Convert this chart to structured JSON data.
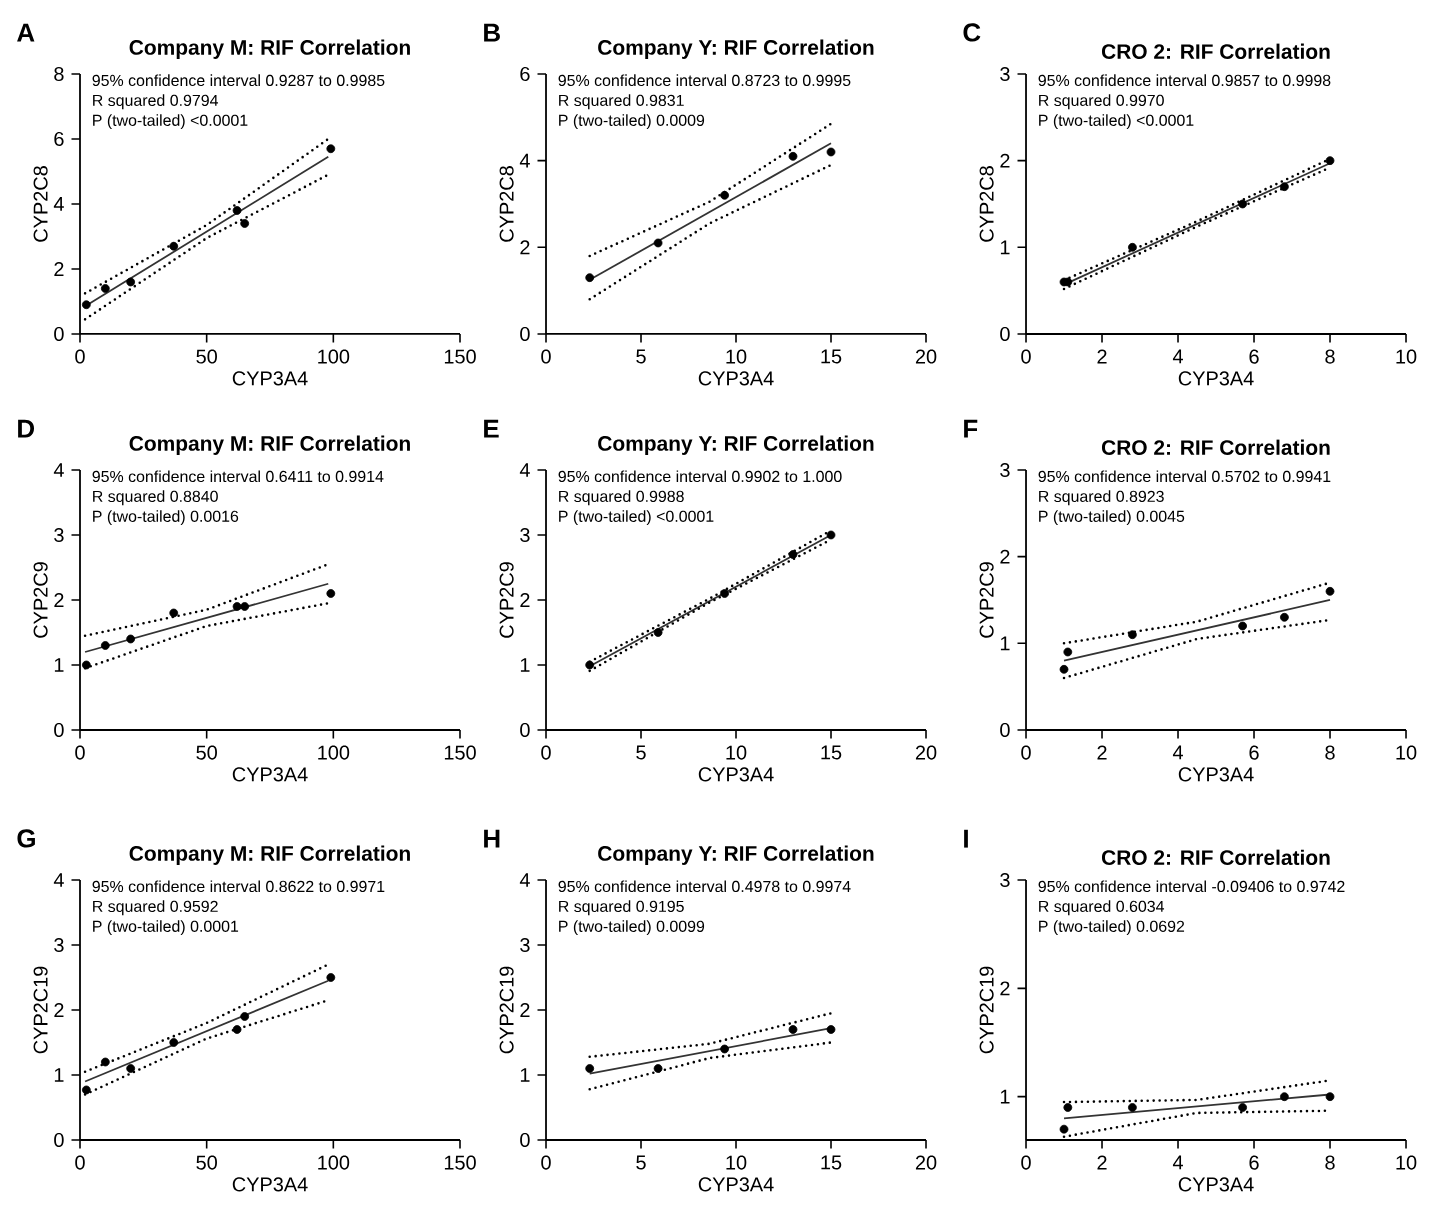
{
  "chart_data": [
    {
      "type": "scatter",
      "title": "Company M: RIF Correlation",
      "xlabel": "CYP3A4",
      "ylabel": "CYP2C8",
      "xlim": [
        0,
        150
      ],
      "xticks": [
        0,
        50,
        100,
        150
      ],
      "ylim": [
        0,
        8
      ],
      "yticks": [
        0,
        2,
        4,
        6,
        8
      ],
      "annotations": [
        "A",
        "95% confidence interval 0.9287 to 0.9985",
        "R squared 0.9794",
        "P (two-tailed) <0.0001"
      ],
      "series": [
        {
          "type": "scatter",
          "marker": "circle",
          "color": "#000000",
          "x": [
            2.5,
            10,
            20,
            37,
            62,
            65,
            99
          ],
          "values": [
            0.9,
            1.4,
            1.6,
            2.7,
            3.8,
            3.4,
            5.7
          ]
        },
        {
          "type": "line",
          "marker": "none",
          "line_style": "solid",
          "color": "#333333",
          "x": [
            2,
            98
          ],
          "values": [
            0.85,
            5.45
          ]
        },
        {
          "type": "line",
          "marker": "none",
          "line_style": "dotted",
          "color": "#000000",
          "x": [
            2,
            50,
            98
          ],
          "values": [
            1.25,
            3.35,
            6.0
          ]
        },
        {
          "type": "line",
          "marker": "none",
          "line_style": "dotted",
          "color": "#000000",
          "x": [
            2,
            50,
            98
          ],
          "values": [
            0.45,
            2.95,
            4.9
          ]
        }
      ]
    },
    {
      "type": "scatter",
      "title": "Company Y: RIF Correlation",
      "xlabel": "CYP3A4",
      "ylabel": "CYP2C8",
      "xlim": [
        0,
        20
      ],
      "xticks": [
        0,
        5,
        10,
        15,
        20
      ],
      "ylim": [
        0,
        6
      ],
      "yticks": [
        0,
        2,
        4,
        6
      ],
      "annotations": [
        "B",
        "95% confidence interval 0.8723 to 0.9995",
        "R squared 0.9831",
        "P (two-tailed) 0.0009"
      ],
      "series": [
        {
          "type": "scatter",
          "marker": "circle",
          "color": "#000000",
          "x": [
            2.3,
            5.9,
            9.4,
            13,
            15
          ],
          "values": [
            1.3,
            2.1,
            3.2,
            4.1,
            4.2
          ]
        },
        {
          "type": "line",
          "marker": "none",
          "line_style": "solid",
          "color": "#333333",
          "x": [
            2.3,
            15
          ],
          "values": [
            1.25,
            4.4
          ]
        },
        {
          "type": "line",
          "marker": "none",
          "line_style": "dotted",
          "color": "#000000",
          "x": [
            2.3,
            8.6,
            15
          ],
          "values": [
            1.8,
            3.05,
            4.85
          ]
        },
        {
          "type": "line",
          "marker": "none",
          "line_style": "dotted",
          "color": "#000000",
          "x": [
            2.3,
            8.6,
            15
          ],
          "values": [
            0.8,
            2.55,
            3.9
          ]
        }
      ]
    },
    {
      "type": "scatter",
      "title": "CRO 2: RIF Correlation",
      "xlabel": "CYP3A4",
      "ylabel": "CYP2C8",
      "xlim": [
        0,
        10
      ],
      "xticks": [
        0,
        2,
        4,
        6,
        8,
        10
      ],
      "ylim": [
        0,
        3
      ],
      "yticks": [
        0,
        1,
        2,
        3
      ],
      "annotations": [
        "C",
        "95% confidence interval 0.9857 to 0.9998",
        "R squared 0.9970",
        "P (two-tailed) <0.0001"
      ],
      "series": [
        {
          "type": "scatter",
          "marker": "circle",
          "color": "#000000",
          "x": [
            1,
            1.1,
            2.8,
            5.7,
            6.8,
            8
          ],
          "values": [
            0.6,
            0.6,
            1.0,
            1.5,
            1.7,
            2.0
          ]
        },
        {
          "type": "line",
          "marker": "none",
          "line_style": "solid",
          "color": "#333333",
          "x": [
            1,
            8
          ],
          "values": [
            0.57,
            1.97
          ]
        },
        {
          "type": "line",
          "marker": "none",
          "line_style": "dotted",
          "color": "#000000",
          "x": [
            1,
            4.5,
            8
          ],
          "values": [
            0.62,
            1.3,
            2.02
          ]
        },
        {
          "type": "line",
          "marker": "none",
          "line_style": "dotted",
          "color": "#000000",
          "x": [
            1,
            4.5,
            8
          ],
          "values": [
            0.52,
            1.24,
            1.92
          ]
        }
      ]
    },
    {
      "type": "scatter",
      "title": "Company M: RIF Correlation",
      "xlabel": "CYP3A4",
      "ylabel": "CYP2C9",
      "xlim": [
        0,
        150
      ],
      "xticks": [
        0,
        50,
        100,
        150
      ],
      "ylim": [
        0,
        4
      ],
      "yticks": [
        0,
        1,
        2,
        3,
        4
      ],
      "annotations": [
        "D",
        "95% confidence interval 0.6411 to 0.9914",
        "R squared 0.8840",
        "P (two-tailed) 0.0016"
      ],
      "series": [
        {
          "type": "scatter",
          "marker": "circle",
          "color": "#000000",
          "x": [
            2.5,
            10,
            20,
            37,
            62,
            65,
            99
          ],
          "values": [
            1.0,
            1.3,
            1.4,
            1.8,
            1.9,
            1.9,
            2.1
          ]
        },
        {
          "type": "line",
          "marker": "none",
          "line_style": "solid",
          "color": "#333333",
          "x": [
            2,
            98
          ],
          "values": [
            1.2,
            2.25
          ]
        },
        {
          "type": "line",
          "marker": "none",
          "line_style": "dotted",
          "color": "#000000",
          "x": [
            2,
            50,
            98
          ],
          "values": [
            1.45,
            1.85,
            2.55
          ]
        },
        {
          "type": "line",
          "marker": "none",
          "line_style": "dotted",
          "color": "#000000",
          "x": [
            2,
            50,
            98
          ],
          "values": [
            0.95,
            1.6,
            1.95
          ]
        }
      ]
    },
    {
      "type": "scatter",
      "title": "Company Y: RIF Correlation",
      "xlabel": "CYP3A4",
      "ylabel": "CYP2C9",
      "xlim": [
        0,
        20
      ],
      "xticks": [
        0,
        5,
        10,
        15,
        20
      ],
      "ylim": [
        0,
        4
      ],
      "yticks": [
        0,
        1,
        2,
        3,
        4
      ],
      "annotations": [
        "E",
        "95% confidence interval 0.9902 to 1.000",
        "R squared 0.9988",
        "P (two-tailed) <0.0001"
      ],
      "series": [
        {
          "type": "scatter",
          "marker": "circle",
          "color": "#000000",
          "x": [
            2.3,
            5.9,
            9.4,
            13,
            15
          ],
          "values": [
            1.0,
            1.5,
            2.1,
            2.7,
            3.0
          ]
        },
        {
          "type": "line",
          "marker": "none",
          "line_style": "solid",
          "color": "#333333",
          "x": [
            2.3,
            15
          ],
          "values": [
            0.98,
            3.0
          ]
        },
        {
          "type": "line",
          "marker": "none",
          "line_style": "dotted",
          "color": "#000000",
          "x": [
            2.3,
            8.6,
            15
          ],
          "values": [
            1.05,
            2.02,
            3.07
          ]
        },
        {
          "type": "line",
          "marker": "none",
          "line_style": "dotted",
          "color": "#000000",
          "x": [
            2.3,
            8.6,
            15
          ],
          "values": [
            0.91,
            1.96,
            2.93
          ]
        }
      ]
    },
    {
      "type": "scatter",
      "title": "CRO 2: RIF Correlation",
      "xlabel": "CYP3A4",
      "ylabel": "CYP2C9",
      "xlim": [
        0,
        10
      ],
      "xticks": [
        0,
        2,
        4,
        6,
        8,
        10
      ],
      "ylim": [
        0,
        3
      ],
      "yticks": [
        0,
        1,
        2,
        3
      ],
      "annotations": [
        "F",
        "95% confidence interval 0.5702 to 0.9941",
        "R squared 0.8923",
        "P (two-tailed) 0.0045"
      ],
      "series": [
        {
          "type": "scatter",
          "marker": "circle",
          "color": "#000000",
          "x": [
            1,
            1.1,
            2.8,
            5.7,
            6.8,
            8
          ],
          "values": [
            0.7,
            0.9,
            1.1,
            1.2,
            1.3,
            1.6
          ]
        },
        {
          "type": "line",
          "marker": "none",
          "line_style": "solid",
          "color": "#333333",
          "x": [
            1,
            8
          ],
          "values": [
            0.8,
            1.5
          ]
        },
        {
          "type": "line",
          "marker": "none",
          "line_style": "dotted",
          "color": "#000000",
          "x": [
            1,
            4.5,
            8
          ],
          "values": [
            1.0,
            1.25,
            1.7
          ]
        },
        {
          "type": "line",
          "marker": "none",
          "line_style": "dotted",
          "color": "#000000",
          "x": [
            1,
            4.5,
            8
          ],
          "values": [
            0.6,
            1.05,
            1.27
          ]
        }
      ]
    },
    {
      "type": "scatter",
      "title": "Company M: RIF Correlation",
      "xlabel": "CYP3A4",
      "ylabel": "CYP2C19",
      "xlim": [
        0,
        150
      ],
      "xticks": [
        0,
        50,
        100,
        150
      ],
      "ylim": [
        0,
        4
      ],
      "yticks": [
        0,
        1,
        2,
        3,
        4
      ],
      "annotations": [
        "G",
        "95% confidence interval 0.8622 to 0.9971",
        "R squared 0.9592",
        "P (two-tailed) 0.0001"
      ],
      "series": [
        {
          "type": "scatter",
          "marker": "circle",
          "color": "#000000",
          "x": [
            2.5,
            10,
            20,
            37,
            62,
            65,
            99
          ],
          "values": [
            0.77,
            1.2,
            1.1,
            1.5,
            1.7,
            1.9,
            2.5
          ]
        },
        {
          "type": "line",
          "marker": "none",
          "line_style": "solid",
          "color": "#333333",
          "x": [
            2,
            98
          ],
          "values": [
            0.9,
            2.45
          ]
        },
        {
          "type": "line",
          "marker": "none",
          "line_style": "dotted",
          "color": "#000000",
          "x": [
            2,
            50,
            98
          ],
          "values": [
            1.05,
            1.8,
            2.7
          ]
        },
        {
          "type": "line",
          "marker": "none",
          "line_style": "dotted",
          "color": "#000000",
          "x": [
            2,
            50,
            98
          ],
          "values": [
            0.7,
            1.56,
            2.15
          ]
        }
      ]
    },
    {
      "type": "scatter",
      "title": "Company Y: RIF Correlation",
      "xlabel": "CYP3A4",
      "ylabel": "CYP2C19",
      "xlim": [
        0,
        20
      ],
      "xticks": [
        0,
        5,
        10,
        15,
        20
      ],
      "ylim": [
        0,
        4
      ],
      "yticks": [
        0,
        1,
        2,
        3,
        4
      ],
      "annotations": [
        "H",
        "95% confidence interval 0.4978 to 0.9974",
        "R squared 0.9195",
        "P (two-tailed) 0.0099"
      ],
      "series": [
        {
          "type": "scatter",
          "marker": "circle",
          "color": "#000000",
          "x": [
            2.3,
            5.9,
            9.4,
            13,
            15
          ],
          "values": [
            1.1,
            1.1,
            1.4,
            1.7,
            1.7
          ]
        },
        {
          "type": "line",
          "marker": "none",
          "line_style": "solid",
          "color": "#333333",
          "x": [
            2.3,
            15
          ],
          "values": [
            1.02,
            1.72
          ]
        },
        {
          "type": "line",
          "marker": "none",
          "line_style": "dotted",
          "color": "#000000",
          "x": [
            2.3,
            8.6,
            15
          ],
          "values": [
            1.28,
            1.48,
            1.95
          ]
        },
        {
          "type": "line",
          "marker": "none",
          "line_style": "dotted",
          "color": "#000000",
          "x": [
            2.3,
            8.6,
            15
          ],
          "values": [
            0.78,
            1.26,
            1.5
          ]
        }
      ]
    },
    {
      "type": "scatter",
      "title": "CRO 2: RIF Correlation",
      "xlabel": "CYP3A4",
      "ylabel": "CYP2C19",
      "xlim": [
        0,
        10
      ],
      "xticks": [
        0,
        2,
        4,
        6,
        8,
        10
      ],
      "ylim": [
        0.6,
        3
      ],
      "yticks": [
        1,
        2,
        3
      ],
      "annotations": [
        "I",
        "95% confidence interval -0.09406 to 0.9742",
        "R squared 0.6034",
        "P (two-tailed) 0.0692"
      ],
      "series": [
        {
          "type": "scatter",
          "marker": "circle",
          "color": "#000000",
          "x": [
            1,
            1.1,
            2.8,
            5.7,
            6.8,
            8
          ],
          "values": [
            0.7,
            0.9,
            0.9,
            0.9,
            1.0,
            1.0
          ]
        },
        {
          "type": "line",
          "marker": "none",
          "line_style": "solid",
          "color": "#333333",
          "x": [
            1,
            8
          ],
          "values": [
            0.8,
            1.02
          ]
        },
        {
          "type": "line",
          "marker": "none",
          "line_style": "dotted",
          "color": "#000000",
          "x": [
            1,
            4.5,
            8
          ],
          "values": [
            0.95,
            0.97,
            1.15
          ]
        },
        {
          "type": "line",
          "marker": "none",
          "line_style": "dotted",
          "color": "#000000",
          "x": [
            1,
            4.5,
            8
          ],
          "values": [
            0.63,
            0.85,
            0.87
          ]
        }
      ]
    }
  ]
}
